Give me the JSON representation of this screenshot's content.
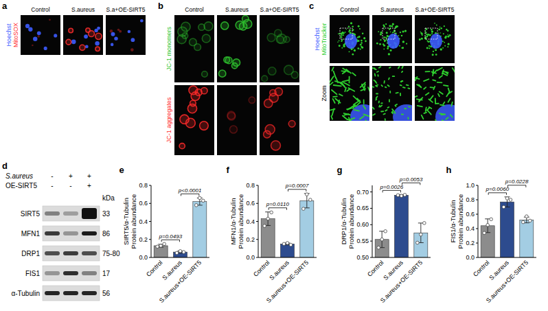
{
  "figure": {
    "a": {
      "panel": "a",
      "columns": [
        "Control",
        "S.aureus",
        "S.a+OE-SIRT5"
      ],
      "channels": [
        {
          "name": "Hoechst",
          "color": "#3d5cff"
        },
        {
          "name": "MitoSOX",
          "color": "#ff2e2e"
        }
      ]
    },
    "b": {
      "panel": "b",
      "columns": [
        "Control",
        "S.aureus",
        "S.a+OE-SIRT5"
      ],
      "rows": [
        {
          "name": "JC-1 monomers",
          "color": "#2fc42f"
        },
        {
          "name": "JC-1 aggregates",
          "color": "#ff2a2a"
        }
      ]
    },
    "c": {
      "panel": "c",
      "columns": [
        "Control",
        "S.aureus",
        "S.a+OE-SIRT5"
      ],
      "channels": [
        {
          "name": "Hoechst",
          "color": "#3d5cff"
        },
        {
          "name": "MitoTracker",
          "color": "#2fd02f"
        }
      ],
      "zoom_label": "Zoom"
    },
    "d": {
      "panel": "d",
      "conditions": [
        {
          "name": "S.aureus",
          "signs": [
            "-",
            "+",
            "+"
          ]
        },
        {
          "name": "OE-SIRT5",
          "signs": [
            "-",
            "-",
            "+"
          ]
        }
      ],
      "unit": "kDa",
      "rows": [
        {
          "name": "SIRT5",
          "kda": "33"
        },
        {
          "name": "MFN1",
          "kda": "86"
        },
        {
          "name": "DRP1",
          "kda": "75-80"
        },
        {
          "name": "FIS1",
          "kda": "17"
        },
        {
          "name": "α-Tubulin",
          "kda": "56"
        }
      ]
    }
  },
  "chart_data": [
    {
      "type": "bar",
      "panel": "e",
      "y_label": [
        "SIRT5/α-Tubulin",
        "Protein abundance"
      ],
      "categories": [
        "Control",
        "S.aureus",
        "S.aureus+OE-SIRT5"
      ],
      "values": [
        0.13,
        0.06,
        0.62
      ],
      "errors": [
        0.016,
        0.012,
        0.04
      ],
      "points": [
        [
          0.12,
          0.13,
          0.15
        ],
        [
          0.05,
          0.07,
          0.06
        ],
        [
          0.58,
          0.66,
          0.63
        ]
      ],
      "colors": [
        "#8c8c8c",
        "#2d4b8e",
        "#a3cde3"
      ],
      "ylim": [
        0,
        0.8
      ],
      "yticks": [
        {
          "value": 0,
          "label": "0.0"
        },
        {
          "value": 0.2,
          "label": "0.2"
        },
        {
          "value": 0.4,
          "label": "0.4"
        },
        {
          "value": 0.6,
          "label": "0.6"
        },
        {
          "value": 0.8,
          "label": "0.8"
        }
      ],
      "comparisons": [
        {
          "label": "p=0.0493",
          "between": [
            0,
            1
          ]
        },
        {
          "label": "p<0.0001",
          "between": [
            1,
            2
          ]
        }
      ]
    },
    {
      "type": "bar",
      "panel": "f",
      "y_label": [
        "MFN1/α-Tubulin",
        "Protein abundance"
      ],
      "categories": [
        "Control",
        "S.aureus",
        "S.aureus+OE-SIRT5"
      ],
      "values": [
        0.43,
        0.15,
        0.63
      ],
      "errors": [
        0.075,
        0.01,
        0.08
      ],
      "points": [
        [
          0.35,
          0.43,
          0.5
        ],
        [
          0.15,
          0.16,
          0.14
        ],
        [
          0.54,
          0.7,
          0.64
        ]
      ],
      "colors": [
        "#8c8c8c",
        "#2d4b8e",
        "#a3cde3"
      ],
      "ylim": [
        0,
        0.8
      ],
      "yticks": [
        {
          "value": 0,
          "label": "0.0"
        },
        {
          "value": 0.2,
          "label": "0.2"
        },
        {
          "value": 0.4,
          "label": "0.4"
        },
        {
          "value": 0.6,
          "label": "0.6"
        },
        {
          "value": 0.8,
          "label": "0.8"
        }
      ],
      "comparisons": [
        {
          "label": "p=0.0110",
          "between": [
            0,
            1
          ]
        },
        {
          "label": "p=0.0007",
          "between": [
            1,
            2
          ]
        }
      ]
    },
    {
      "type": "bar",
      "panel": "g",
      "y_label": [
        "DRP1/α-Tubulin",
        "Protein abundance"
      ],
      "categories": [
        "Control",
        "S.aureus",
        "S.aureus+OE-SIRT5"
      ],
      "values": [
        0.555,
        0.69,
        0.575
      ],
      "errors": [
        0.025,
        0.002,
        0.03
      ],
      "points": [
        [
          0.53,
          0.555,
          0.58
        ],
        [
          0.69,
          0.688,
          0.691
        ],
        [
          0.545,
          0.57,
          0.605
        ]
      ],
      "colors": [
        "#8c8c8c",
        "#2d4b8e",
        "#a3cde3"
      ],
      "ylim": [
        0.5,
        0.72
      ],
      "yticks": [
        {
          "value": 0.5,
          "label": "0.50"
        },
        {
          "value": 0.55,
          "label": "0.55"
        },
        {
          "value": 0.6,
          "label": "0.60"
        },
        {
          "value": 0.65,
          "label": "0.65"
        },
        {
          "value": 0.7,
          "label": "0.70"
        }
      ],
      "comparisons": [
        {
          "label": "p=0.0026",
          "between": [
            0,
            1
          ]
        },
        {
          "label": "p=0.0053",
          "between": [
            1,
            2
          ]
        }
      ]
    },
    {
      "type": "bar",
      "panel": "h",
      "y_label": [
        "FIS1/α-Tubulin",
        "Protein abundance"
      ],
      "categories": [
        "Control",
        "S.aureus",
        "S.aureus+OE-SIRT5"
      ],
      "values": [
        0.44,
        0.77,
        0.52
      ],
      "errors": [
        0.095,
        0.07,
        0.04
      ],
      "points": [
        [
          0.34,
          0.45,
          0.53
        ],
        [
          0.7,
          0.82,
          0.8
        ],
        [
          0.49,
          0.57,
          0.51
        ]
      ],
      "colors": [
        "#8c8c8c",
        "#2d4b8e",
        "#a3cde3"
      ],
      "ylim": [
        0,
        1.0
      ],
      "yticks": [
        {
          "value": 0,
          "label": "0.0"
        },
        {
          "value": 0.2,
          "label": "0.2"
        },
        {
          "value": 0.4,
          "label": "0.4"
        },
        {
          "value": 0.6,
          "label": "0.6"
        },
        {
          "value": 0.8,
          "label": "0.8"
        },
        {
          "value": 1.0,
          "label": "1.0"
        }
      ],
      "comparisons": [
        {
          "label": "p=0.0060",
          "between": [
            0,
            1
          ]
        },
        {
          "label": "p=0.0228",
          "between": [
            1,
            2
          ]
        }
      ]
    }
  ]
}
